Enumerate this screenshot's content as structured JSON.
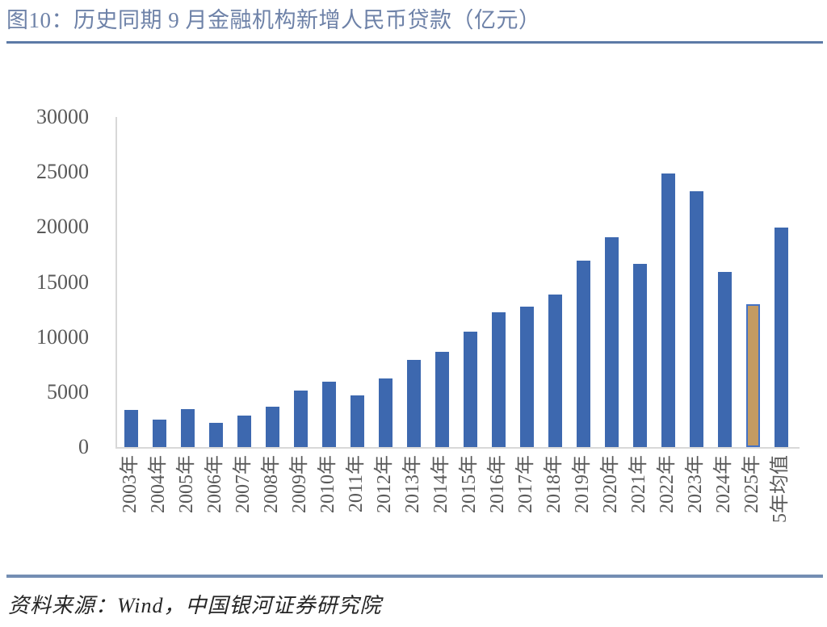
{
  "title": "图10：历史同期 9 月金融机构新增人民币贷款（亿元）",
  "source": "资料来源：Wind，中国银河证券研究院",
  "colors": {
    "bar": "#3D68AF",
    "highlight_fill": "#C49B62",
    "highlight_border": "#4472C4",
    "title": "#6E82A8",
    "rule": "#5C7AA6",
    "axis": "#D8D8D8",
    "tick_text": "#595959"
  },
  "chart_data": {
    "type": "bar",
    "title": "图10：历史同期 9 月金融机构新增人民币贷款（亿元）",
    "xlabel": "",
    "ylabel": "",
    "categories": [
      "2003年",
      "2004年",
      "2005年",
      "2006年",
      "2007年",
      "2008年",
      "2009年",
      "2010年",
      "2011年",
      "2012年",
      "2013年",
      "2014年",
      "2015年",
      "2016年",
      "2017年",
      "2018年",
      "2019年",
      "2020年",
      "2021年",
      "2022年",
      "2023年",
      "2024年",
      "2025年",
      "5年均值"
    ],
    "values": [
      3400,
      2500,
      3450,
      2200,
      2850,
      3700,
      5150,
      5950,
      4700,
      6250,
      7900,
      8650,
      10500,
      12250,
      12800,
      13900,
      16950,
      19100,
      16650,
      24900,
      23250,
      15950,
      12950,
      19950
    ],
    "highlight_index": 22,
    "highlight_category": "2025年",
    "ylim": [
      0,
      30000
    ],
    "yticks": [
      0,
      5000,
      10000,
      15000,
      20000,
      25000,
      30000
    ],
    "grid": false,
    "legend": null,
    "bar_color": "#3D68AF",
    "highlight_color": "#C49B62"
  }
}
